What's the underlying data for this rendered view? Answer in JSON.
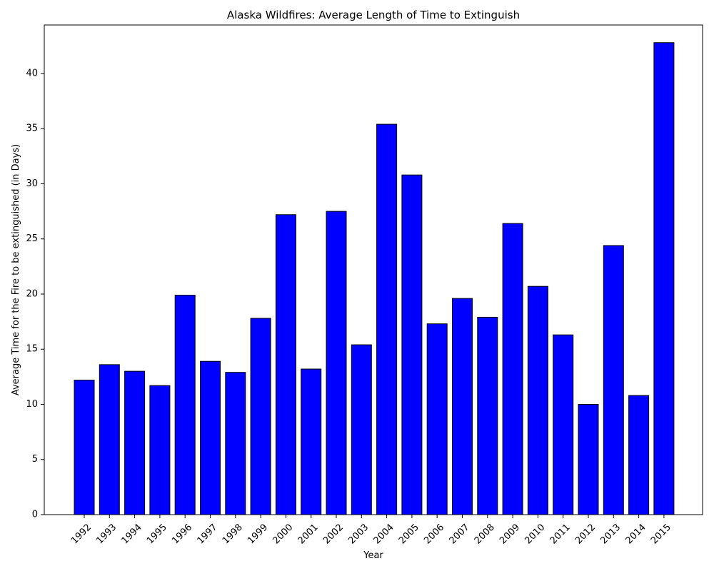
{
  "chart_data": {
    "type": "bar",
    "title": "Alaska Wildfires: Average Length of Time to Extinguish",
    "xlabel": "Year",
    "ylabel": "Average Time for the Fire to be extinguished (in Days)",
    "categories": [
      "1992",
      "1993",
      "1994",
      "1995",
      "1996",
      "1997",
      "1998",
      "1999",
      "2000",
      "2001",
      "2002",
      "2003",
      "2004",
      "2005",
      "2006",
      "2007",
      "2008",
      "2009",
      "2010",
      "2011",
      "2012",
      "2013",
      "2014",
      "2015"
    ],
    "values": [
      12.2,
      13.6,
      13.0,
      11.7,
      19.9,
      13.9,
      12.9,
      17.8,
      27.2,
      13.2,
      27.5,
      15.4,
      35.4,
      30.8,
      17.3,
      19.6,
      17.9,
      26.4,
      20.7,
      16.3,
      10.0,
      24.4,
      10.8,
      42.8
    ],
    "ylim": [
      0,
      44.4
    ],
    "yticks": [
      0,
      5,
      10,
      15,
      20,
      25,
      30,
      35,
      40
    ],
    "grid": false,
    "legend": "none",
    "colors": {
      "bar_fill": "#0000ff",
      "bar_edge": "#000000",
      "axis": "#000000"
    }
  }
}
